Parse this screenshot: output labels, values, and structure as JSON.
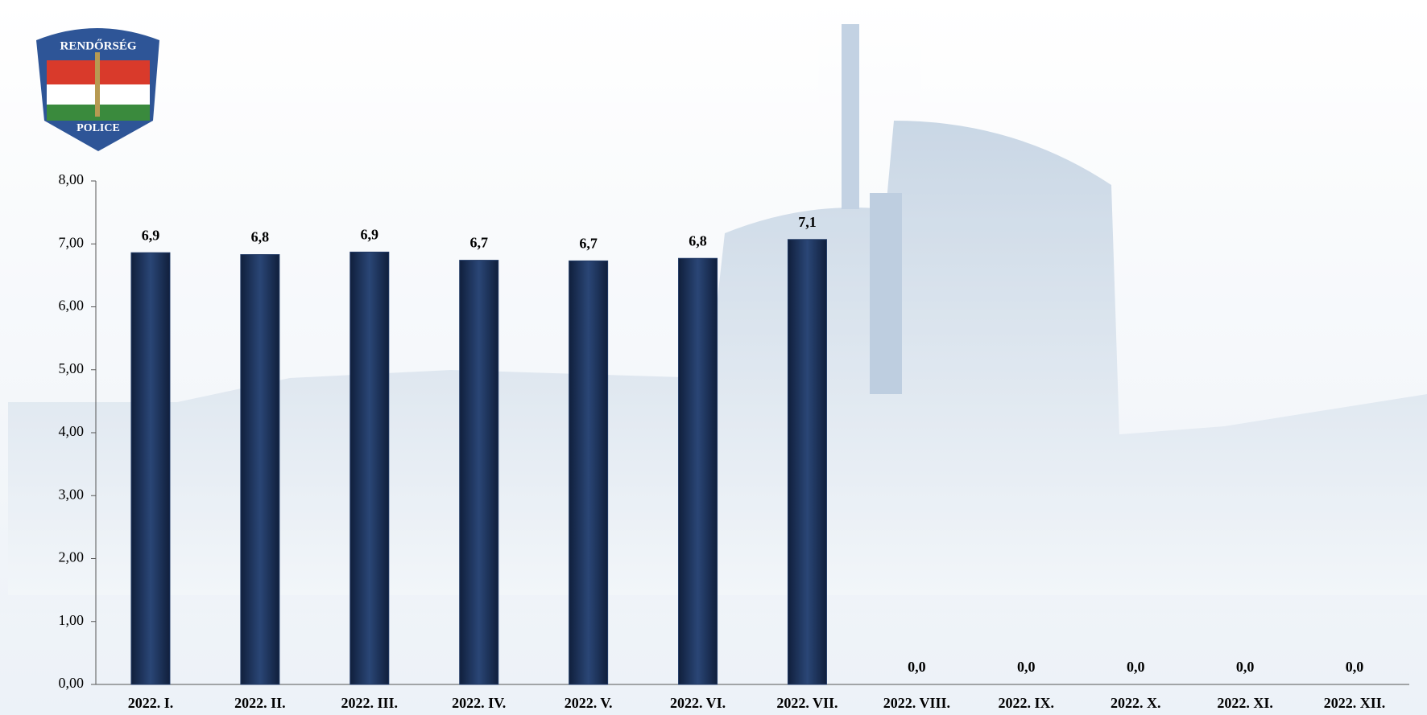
{
  "logo": {
    "top_text": "RENDŐRSÉG",
    "bottom_text": "POLICE"
  },
  "chart_data": {
    "type": "bar",
    "categories": [
      "2022. I.",
      "2022. II.",
      "2022. III.",
      "2022. IV.",
      "2022. V.",
      "2022. VI.",
      "2022. VII.",
      "2022. VIII.",
      "2022. IX.",
      "2022. X.",
      "2022. XI.",
      "2022. XII."
    ],
    "values": [
      6.86,
      6.83,
      6.87,
      6.74,
      6.73,
      6.77,
      7.07,
      0,
      0,
      0,
      0,
      0
    ],
    "value_labels": [
      "6,9",
      "6,8",
      "6,9",
      "6,7",
      "6,7",
      "6,8",
      "7,1",
      "0,0",
      "0,0",
      "0,0",
      "0,0",
      "0,0"
    ],
    "color": "#1f3864",
    "ylim": [
      0,
      8
    ],
    "yticks": [
      {
        "value": 0,
        "label": "0,00"
      },
      {
        "value": 1,
        "label": "1,00"
      },
      {
        "value": 2,
        "label": "2,00"
      },
      {
        "value": 3,
        "label": "3,00"
      },
      {
        "value": 4,
        "label": "4,00"
      },
      {
        "value": 5,
        "label": "5,00"
      },
      {
        "value": 6,
        "label": "6,00"
      },
      {
        "value": 7,
        "label": "7,00"
      },
      {
        "value": 8,
        "label": "8,00"
      }
    ],
    "grid": false
  }
}
